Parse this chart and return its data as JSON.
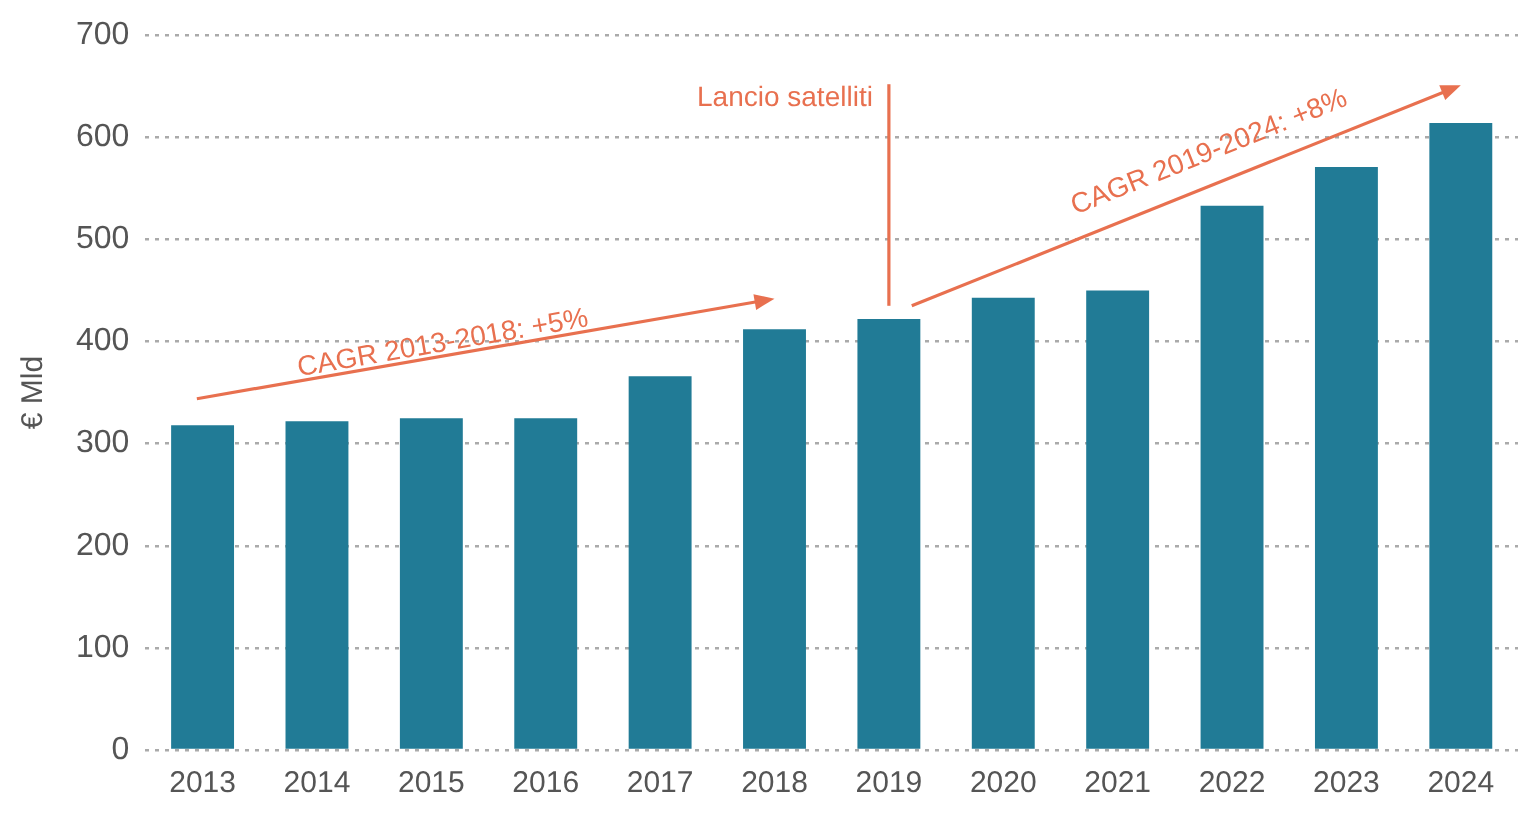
{
  "chart_data": {
    "type": "bar",
    "ylabel": "€ Mld",
    "categories": [
      "2013",
      "2014",
      "2015",
      "2016",
      "2017",
      "2018",
      "2019",
      "2020",
      "2021",
      "2022",
      "2023",
      "2024"
    ],
    "values": [
      318,
      322,
      325,
      325,
      366,
      412,
      422,
      443,
      450,
      533,
      571,
      614
    ],
    "color": "#217b96",
    "ylim": [
      0,
      700
    ],
    "yticks": [
      0,
      100,
      200,
      300,
      400,
      500,
      600,
      700
    ],
    "grid": "y",
    "legend": false,
    "annotations": [
      "CAGR 2013-2018: +5%",
      "CAGR 2019-2024: +8%",
      "Lancio satelliti"
    ]
  }
}
